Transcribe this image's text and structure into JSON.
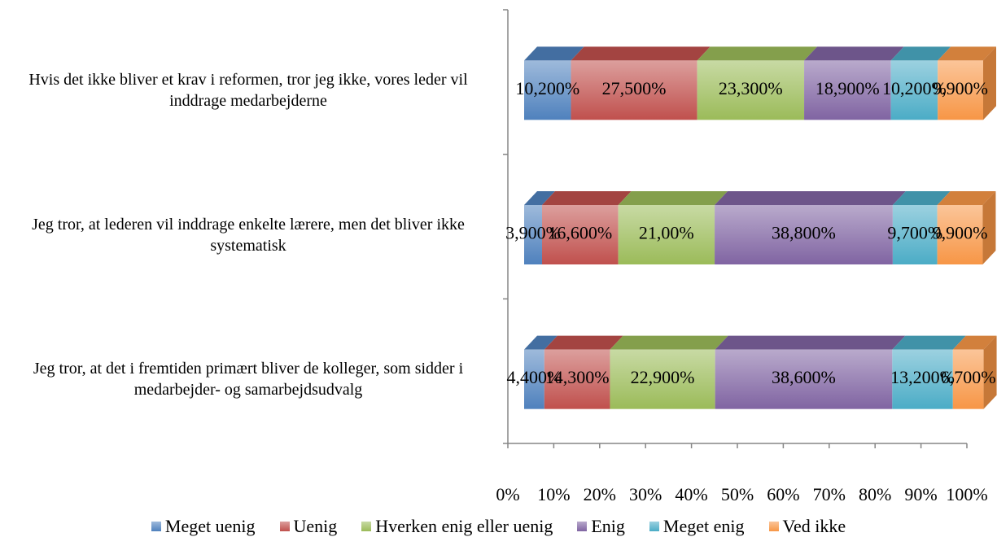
{
  "chart_data": {
    "type": "bar3d_stacked_horizontal",
    "categories": [
      "Hvis det ikke bliver et krav i reformen, tror jeg ikke, vores leder vil inddrage medarbejderne",
      "Jeg tror, at lederen vil inddrage enkelte lærere, men det bliver ikke systematisk",
      "Jeg tror, at det i fremtiden primært bliver de kolleger, som sidder i medarbejder- og samarbejdsudvalg"
    ],
    "series": [
      {
        "name": "Meget uenig",
        "color": "#4f81bd",
        "values": [
          10.2,
          3.9,
          4.4
        ],
        "value_labels": [
          "10,200%",
          "3,900%",
          "4,400%"
        ]
      },
      {
        "name": "Uenig",
        "color": "#c0504d",
        "values": [
          27.5,
          16.6,
          14.3
        ],
        "value_labels": [
          "27,500%",
          "16,600%",
          "14,300%"
        ]
      },
      {
        "name": "Hverken enig eller uenig",
        "color": "#9bbb59",
        "values": [
          23.3,
          21.0,
          22.9
        ],
        "value_labels": [
          "23,300%",
          "21,00%",
          "22,900%"
        ]
      },
      {
        "name": "Enig",
        "color": "#8064a2",
        "values": [
          18.9,
          38.8,
          38.6
        ],
        "value_labels": [
          "18,900%",
          "38,800%",
          "38,600%"
        ]
      },
      {
        "name": "Meget enig",
        "color": "#4bacc6",
        "values": [
          10.2,
          9.7,
          13.2
        ],
        "value_labels": [
          "10,200%",
          "9,700%",
          "13,200%"
        ]
      },
      {
        "name": "Ved ikke",
        "color": "#f79646",
        "values": [
          9.9,
          9.9,
          6.7
        ],
        "value_labels": [
          "9,900%",
          "9,900%",
          "6,700%"
        ]
      }
    ],
    "xlim": [
      0,
      100
    ],
    "xticks": [
      {
        "value": 0,
        "label": "0%"
      },
      {
        "value": 10,
        "label": "10%"
      },
      {
        "value": 20,
        "label": "20%"
      },
      {
        "value": 30,
        "label": "30%"
      },
      {
        "value": 40,
        "label": "40%"
      },
      {
        "value": 50,
        "label": "50%"
      },
      {
        "value": 60,
        "label": "60%"
      },
      {
        "value": 70,
        "label": "70%"
      },
      {
        "value": 80,
        "label": "80%"
      },
      {
        "value": 90,
        "label": "90%"
      },
      {
        "value": 100,
        "label": "100%"
      }
    ],
    "legend": "bottom"
  }
}
